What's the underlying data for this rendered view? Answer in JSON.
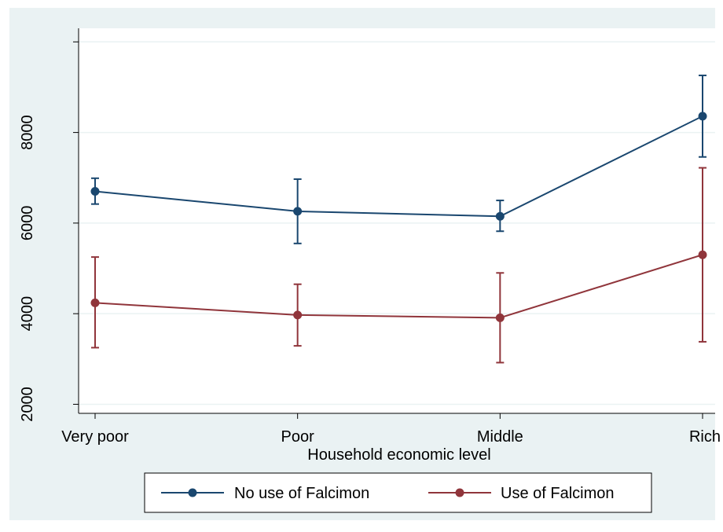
{
  "chart_data": {
    "type": "line",
    "title": "",
    "xlabel": "Household economic level",
    "ylabel": "",
    "categories": [
      "Very poor",
      "Poor",
      "Middle",
      "Rich"
    ],
    "ylim": [
      1800,
      10300
    ],
    "yticks": [
      2000,
      4000,
      6000,
      8000
    ],
    "grid": true,
    "legend_position": "bottom",
    "series": [
      {
        "name": "No use of Falcimon",
        "color": "#1a476f",
        "values": [
          6700,
          6260,
          6150,
          8360
        ],
        "lower": [
          6420,
          5550,
          5820,
          7460
        ],
        "upper": [
          6990,
          6970,
          6500,
          9260
        ]
      },
      {
        "name": "Use of Falcimon",
        "color": "#90353b",
        "values": [
          4240,
          3970,
          3910,
          5300
        ],
        "lower": [
          3250,
          3290,
          2920,
          3380
        ],
        "upper": [
          5250,
          4650,
          4900,
          7220
        ]
      }
    ],
    "colors": {
      "background": "#eaf2f3",
      "plot_background": "#ffffff",
      "grid": "#eaf2f3",
      "axis": "#000000"
    }
  }
}
